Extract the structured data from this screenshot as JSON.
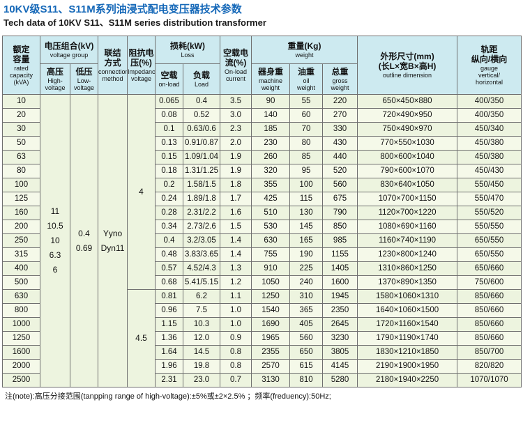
{
  "page": {
    "title_cn": "10KV级S11、S11M系列油浸式配电变压器技术参数",
    "title_en": "Tech data of 10KV S11、S11M series distribution transformer",
    "note": "注(note):高压分接范围(tanpping range of high-voltage):±5%或±2×2.5% ；频率(freduency):50Hz;"
  },
  "colors": {
    "title_blue": "#1568b8",
    "header_bg": "#cdeaf0",
    "row_bg_a": "#edf4df",
    "row_bg_b": "#f5f9e9",
    "border": "#6f6f6f"
  },
  "table": {
    "header_cells": {
      "capacity": {
        "cn": "额定\n容量",
        "en": "rated\ncapacity\n(kVA)"
      },
      "voltage_group": {
        "cn": "电压组合(kV)",
        "en": "voltage group"
      },
      "hv": {
        "cn": "高压",
        "en": "High-\nvoltage"
      },
      "lv": {
        "cn": "低压",
        "en": "Low-\nvoltage"
      },
      "connection": {
        "cn": "联结\n方式",
        "en": "connection\nmethod"
      },
      "impedance": {
        "cn": "阻抗电\n压(%)",
        "en": "Impedance\nvoltage"
      },
      "loss": {
        "cn": "损耗(kW)",
        "en": "Loss"
      },
      "loss_noload": {
        "cn": "空载",
        "en": "on-load"
      },
      "loss_load": {
        "cn": "负载",
        "en": "Load"
      },
      "current": {
        "cn": "空载电\n流(%)",
        "en": "On-load\ncurrent"
      },
      "weight": {
        "cn": "重量(Kg)",
        "en": "weight"
      },
      "weight_body": {
        "cn": "器身重",
        "en": "machine\nweight"
      },
      "weight_oil": {
        "cn": "油重",
        "en": "oil\nweight"
      },
      "weight_gross": {
        "cn": "总重",
        "en": "gross\nweight"
      },
      "dimension": {
        "cn": "外形尺寸(mm)\n(长L×宽B×高H)",
        "en": "outline dimension"
      },
      "gauge": {
        "cn": "轨距\n纵向/横向",
        "en": "gauge\nvertical/\nhorizontal"
      }
    },
    "merged": {
      "high_voltage": [
        "11",
        "10.5",
        "10",
        "6.3",
        "6"
      ],
      "low_voltage": [
        "0.4",
        "0.69"
      ],
      "connection": [
        "Yyno",
        "Dyn11"
      ],
      "impedance_top": "4",
      "impedance_top_rows": 14,
      "impedance_bottom": "4.5",
      "impedance_bottom_rows": 7
    },
    "rows": [
      [
        "10",
        "0.065",
        "0.4",
        "3.5",
        "90",
        "55",
        "220",
        "650×450×880",
        "400/350"
      ],
      [
        "20",
        "0.08",
        "0.52",
        "3.0",
        "140",
        "60",
        "270",
        "720×490×950",
        "400/350"
      ],
      [
        "30",
        "0.1",
        "0.63/0.6",
        "2.3",
        "185",
        "70",
        "330",
        "750×490×970",
        "450/340"
      ],
      [
        "50",
        "0.13",
        "0.91/0.87",
        "2.0",
        "230",
        "80",
        "430",
        "770×550×1030",
        "450/380"
      ],
      [
        "63",
        "0.15",
        "1.09/1.04",
        "1.9",
        "260",
        "85",
        "440",
        "800×600×1040",
        "450/380"
      ],
      [
        "80",
        "0.18",
        "1.31/1.25",
        "1.9",
        "320",
        "95",
        "520",
        "790×600×1070",
        "450/430"
      ],
      [
        "100",
        "0.2",
        "1.58/1.5",
        "1.8",
        "355",
        "100",
        "560",
        "830×640×1050",
        "550/450"
      ],
      [
        "125",
        "0.24",
        "1.89/1.8",
        "1.7",
        "425",
        "115",
        "675",
        "1070×700×1150",
        "550/470"
      ],
      [
        "160",
        "0.28",
        "2.31/2.2",
        "1.6",
        "510",
        "130",
        "790",
        "1120×700×1220",
        "550/520"
      ],
      [
        "200",
        "0.34",
        "2.73/2.6",
        "1.5",
        "530",
        "145",
        "850",
        "1080×690×1160",
        "550/550"
      ],
      [
        "250",
        "0.4",
        "3.2/3.05",
        "1.4",
        "630",
        "165",
        "985",
        "1160×740×1190",
        "650/550"
      ],
      [
        "315",
        "0.48",
        "3.83/3.65",
        "1.4",
        "755",
        "190",
        "1155",
        "1230×800×1240",
        "650/550"
      ],
      [
        "400",
        "0.57",
        "4.52/4.3",
        "1.3",
        "910",
        "225",
        "1405",
        "1310×860×1250",
        "650/660"
      ],
      [
        "500",
        "0.68",
        "5.41/5.15",
        "1.2",
        "1050",
        "240",
        "1600",
        "1370×890×1350",
        "750/600"
      ],
      [
        "630",
        "0.81",
        "6.2",
        "1.1",
        "1250",
        "310",
        "1945",
        "1580×1060×1310",
        "850/660"
      ],
      [
        "800",
        "0.96",
        "7.5",
        "1.0",
        "1540",
        "365",
        "2350",
        "1640×1060×1500",
        "850/660"
      ],
      [
        "1000",
        "1.15",
        "10.3",
        "1.0",
        "1690",
        "405",
        "2645",
        "1720×1160×1540",
        "850/660"
      ],
      [
        "1250",
        "1.36",
        "12.0",
        "0.9",
        "1965",
        "560",
        "3230",
        "1790×1190×1740",
        "850/660"
      ],
      [
        "1600",
        "1.64",
        "14.5",
        "0.8",
        "2355",
        "650",
        "3805",
        "1830×1210×1850",
        "850/700"
      ],
      [
        "2000",
        "1.96",
        "19.8",
        "0.8",
        "2570",
        "615",
        "4145",
        "2190×1900×1950",
        "820/820"
      ],
      [
        "2500",
        "2.31",
        "23.0",
        "0.7",
        "3130",
        "810",
        "5280",
        "2180×1940×2250",
        "1070/1070"
      ]
    ]
  }
}
